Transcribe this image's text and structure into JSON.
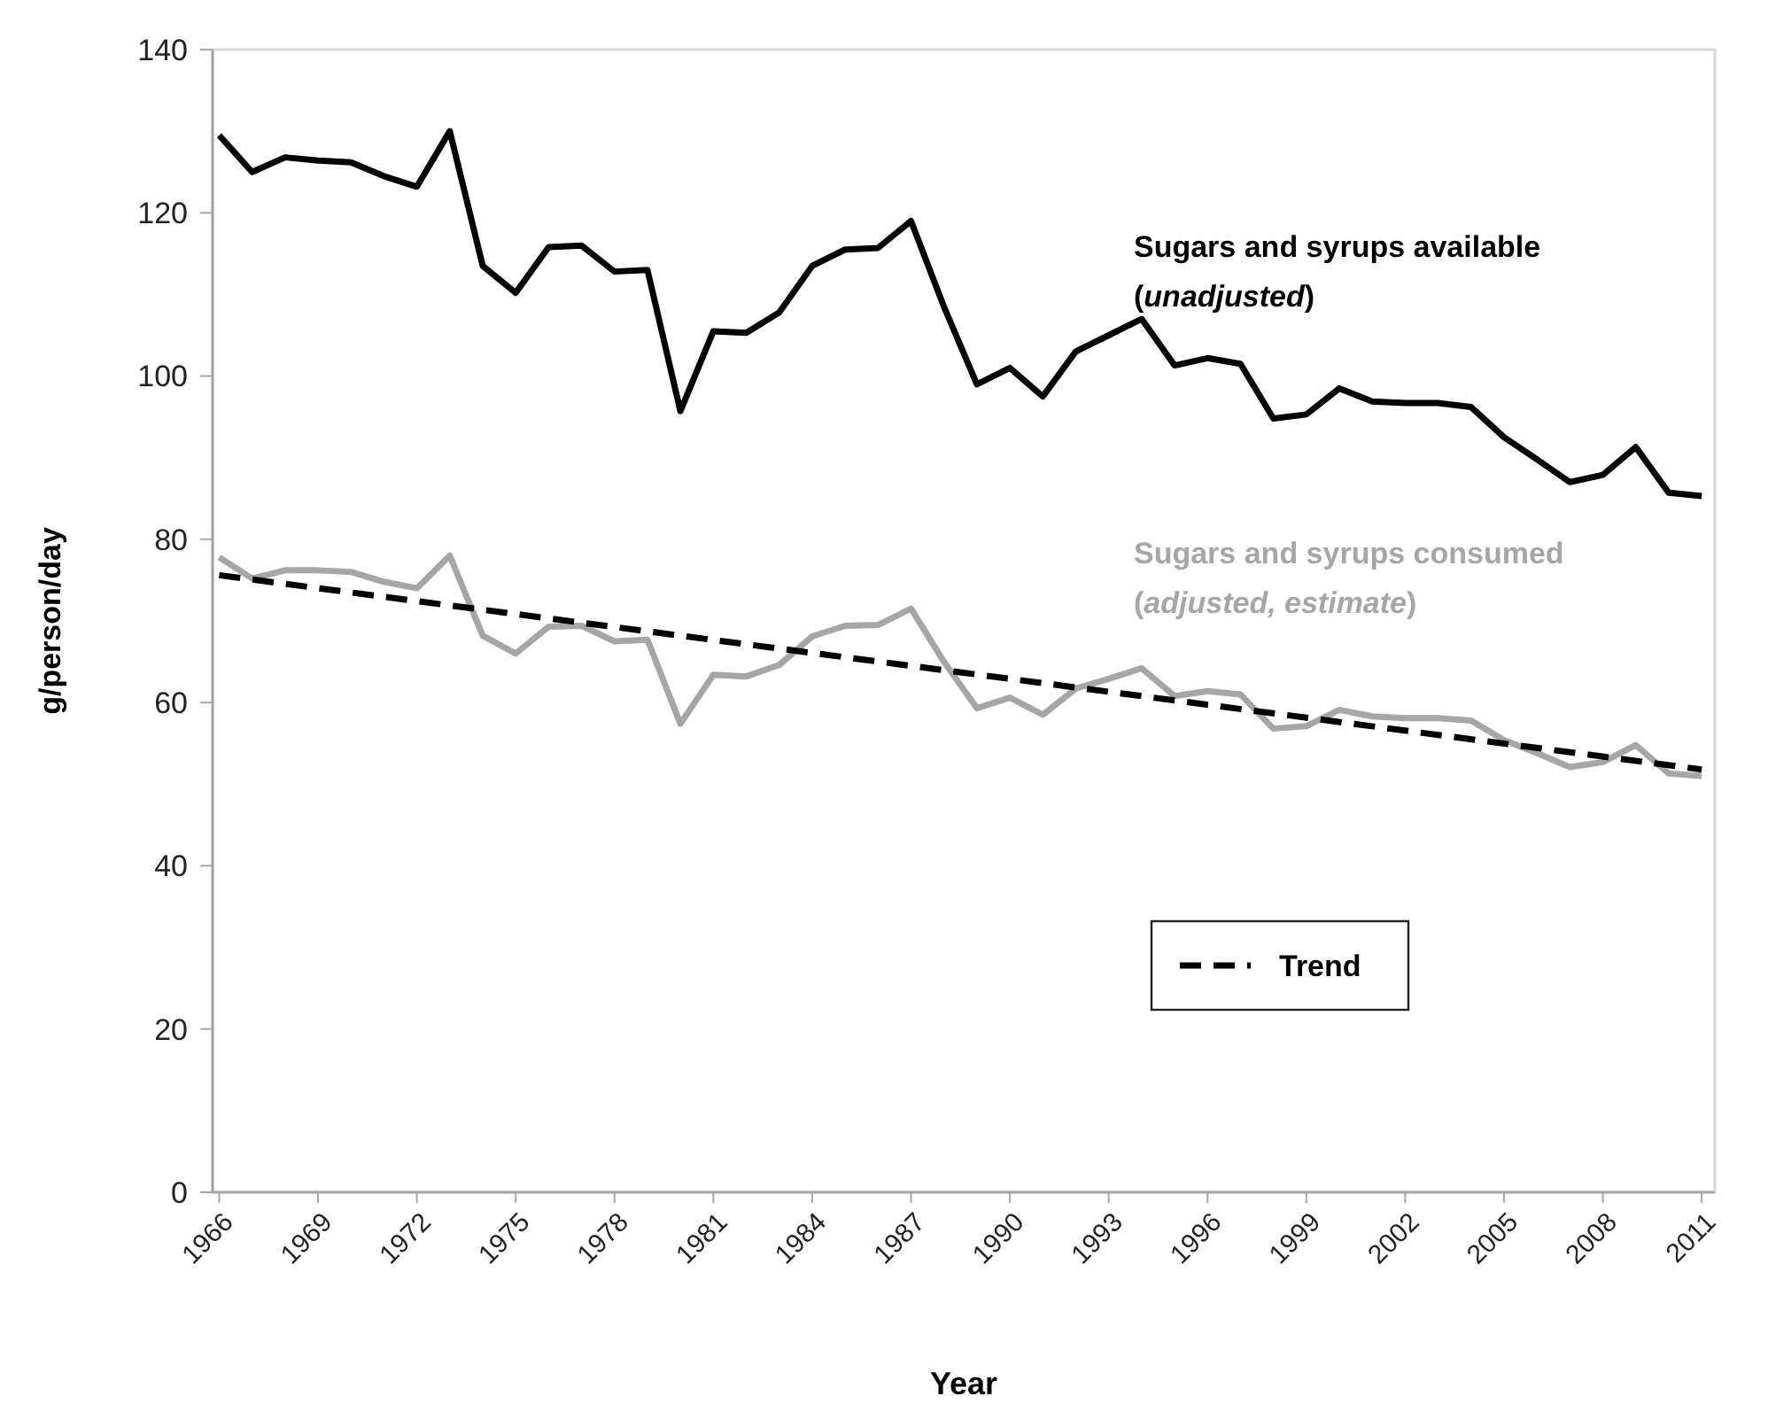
{
  "chart_data": {
    "type": "line",
    "xlabel": "Year",
    "ylabel": "g/person/day",
    "x": [
      1966,
      1967,
      1968,
      1969,
      1970,
      1971,
      1972,
      1973,
      1974,
      1975,
      1976,
      1977,
      1978,
      1979,
      1980,
      1981,
      1982,
      1983,
      1984,
      1985,
      1986,
      1987,
      1988,
      1989,
      1990,
      1991,
      1992,
      1993,
      1994,
      1995,
      1996,
      1997,
      1998,
      1999,
      2000,
      2001,
      2002,
      2003,
      2004,
      2005,
      2006,
      2007,
      2008,
      2009,
      2010,
      2011
    ],
    "xlim": [
      1965.8,
      2011.4
    ],
    "xticks": [
      1966,
      1969,
      1972,
      1975,
      1978,
      1981,
      1984,
      1987,
      1990,
      1993,
      1996,
      1999,
      2002,
      2005,
      2008,
      2011
    ],
    "ylim": [
      0,
      140
    ],
    "yticks": [
      0,
      20,
      40,
      60,
      80,
      100,
      120,
      140
    ],
    "grid": false,
    "legend": "bottom right",
    "line_style": "solid",
    "marker": "none",
    "series": [
      {
        "name": "Sugars and syrups available (unadjusted)",
        "color": "#000000",
        "values": [
          129.5,
          125,
          126.8,
          126.4,
          126.2,
          124.5,
          123.2,
          130,
          113.5,
          110.2,
          115.8,
          116,
          112.8,
          113,
          95.7,
          105.5,
          105.3,
          107.8,
          113.5,
          115.5,
          115.7,
          119,
          108.5,
          99,
          101,
          97.5,
          103,
          105,
          107,
          101.3,
          102.2,
          101.5,
          94.8,
          95.3,
          98.5,
          96.9,
          96.7,
          96.7,
          96.2,
          92.5,
          89.8,
          87,
          87.9,
          91.3,
          85.7,
          85.3
        ]
      },
      {
        "name": "Sugars and syrups consumed (adjusted, estimate)",
        "color": "#a6a6a6",
        "values": [
          77.8,
          75.2,
          76.2,
          76.2,
          76,
          74.8,
          74,
          78,
          68.2,
          66,
          69.3,
          69.4,
          67.5,
          67.7,
          57.4,
          63.4,
          63.2,
          64.6,
          68.1,
          69.4,
          69.5,
          71.5,
          65,
          59.3,
          60.6,
          58.5,
          61.7,
          62.9,
          64.2,
          60.8,
          61.4,
          61,
          56.8,
          57.1,
          59.1,
          58.3,
          58.1,
          58.1,
          57.8,
          55.4,
          53.8,
          52.1,
          52.7,
          54.8,
          51.3,
          51
        ]
      },
      {
        "name": "Trend",
        "color": "#000000",
        "line_style": "dashed",
        "x": [
          1966,
          2011
        ],
        "values": [
          75.6,
          51.8
        ]
      }
    ]
  }
}
